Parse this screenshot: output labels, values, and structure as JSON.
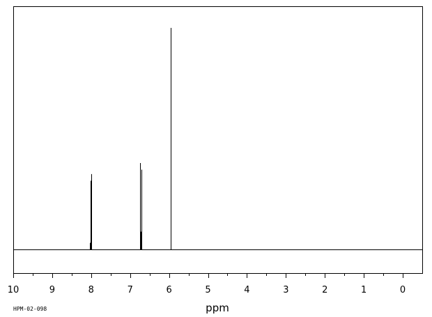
{
  "chart_data": {
    "type": "line",
    "title": "",
    "xlabel": "ppm",
    "ylabel": "",
    "x_reversed": true,
    "xlim": [
      10,
      -0.5
    ],
    "ylim": [
      0,
      100
    ],
    "baseline": 0,
    "grid": false,
    "x_ticks": [
      10,
      9,
      8,
      7,
      6,
      5,
      4,
      3,
      2,
      1,
      0
    ],
    "x_minor_ticks": [
      9.5,
      8.5,
      7.5,
      6.5,
      5.5,
      4.5,
      3.5,
      2.5,
      1.5,
      0.5
    ],
    "series": [
      {
        "values": [
          {
            "ppm": 8.03,
            "intensity": 3
          },
          {
            "ppm": 8.015,
            "intensity": 31
          },
          {
            "ppm": 8.005,
            "intensity": 34
          },
          {
            "ppm": 7.995,
            "intensity": 11
          },
          {
            "ppm": 6.74,
            "intensity": 39
          },
          {
            "ppm": 6.73,
            "intensity": 8
          },
          {
            "ppm": 6.7,
            "intensity": 36
          },
          {
            "ppm": 5.96,
            "intensity": 100
          }
        ]
      }
    ]
  },
  "footer": {
    "sample_code": "HPM-02-098"
  }
}
